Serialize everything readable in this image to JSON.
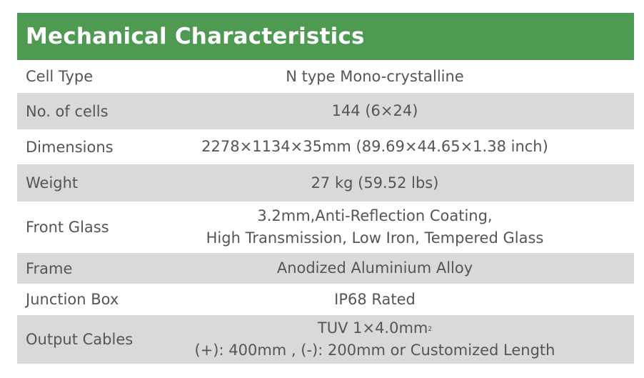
{
  "title": "Mechanical Characteristics",
  "rows": [
    {
      "label": "Cell  Type",
      "value": [
        "N type Mono-crystalline"
      ]
    },
    {
      "label": "No. of cells",
      "value": [
        "144 (6×24)"
      ]
    },
    {
      "label": "Dimensions",
      "value": [
        "2278×1134×35mm (89.69×44.65×1.38 inch)"
      ]
    },
    {
      "label": "Weight",
      "value": [
        "27 kg (59.52 lbs)"
      ]
    },
    {
      "label": "Front Glass",
      "value": [
        "3.2mm,Anti-Reflection Coating,",
        "High Transmission, Low Iron, Tempered Glass"
      ]
    },
    {
      "label": "Frame",
      "value": [
        "Anodized Aluminium Alloy"
      ]
    },
    {
      "label": "Junction Box",
      "value": [
        "IP68 Rated"
      ]
    },
    {
      "label": "Output Cables",
      "value": [
        "TUV  1×4.0mm",
        "(+): 400mm , (-): 200mm or Customized Length"
      ],
      "superscript": "2"
    }
  ],
  "colors": {
    "header": "#4f9a53",
    "stripe": "#d9d9d9"
  }
}
